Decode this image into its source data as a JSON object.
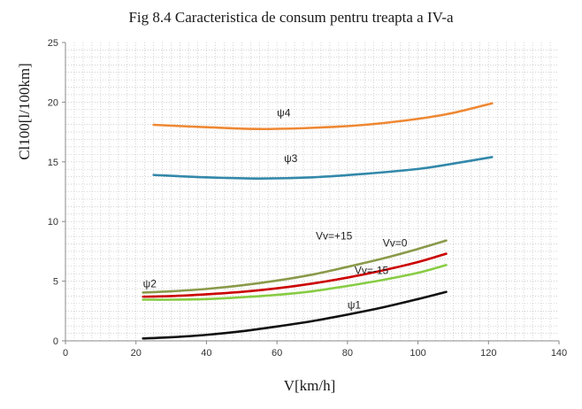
{
  "chart_data": {
    "type": "line",
    "title": "Fig 8.4 Caracteristica de consum pentru treapta a IV-a",
    "xlabel": "V[km/h]",
    "ylabel": "Cl100[l/100km]",
    "xlim": [
      0,
      140
    ],
    "ylim": [
      0,
      25
    ],
    "x_ticks": [
      0,
      20,
      40,
      60,
      80,
      100,
      120,
      140
    ],
    "y_ticks": [
      0,
      5,
      10,
      15,
      20,
      25
    ],
    "grid": "dotted-minor",
    "series": [
      {
        "name": "ψ4",
        "color": "#ee8833",
        "x": [
          25,
          40,
          55,
          70,
          85,
          100,
          110,
          121
        ],
        "y": [
          18.1,
          17.9,
          17.75,
          17.85,
          18.1,
          18.6,
          19.1,
          19.9
        ]
      },
      {
        "name": "ψ3",
        "color": "#3388aa",
        "x": [
          25,
          40,
          55,
          70,
          85,
          100,
          110,
          121
        ],
        "y": [
          13.9,
          13.7,
          13.6,
          13.7,
          14.0,
          14.4,
          14.85,
          15.4
        ]
      },
      {
        "name": "Vv=+15",
        "color": "#8a9a4a",
        "x": [
          22,
          30,
          40,
          50,
          60,
          70,
          80,
          90,
          100,
          108
        ],
        "y": [
          4.05,
          4.15,
          4.35,
          4.65,
          5.05,
          5.55,
          6.2,
          6.9,
          7.7,
          8.4
        ]
      },
      {
        "name": "Vv=0",
        "color": "#cc0000",
        "x": [
          22,
          30,
          40,
          50,
          60,
          70,
          80,
          90,
          100,
          108
        ],
        "y": [
          3.7,
          3.75,
          3.9,
          4.1,
          4.4,
          4.8,
          5.3,
          5.9,
          6.6,
          7.3
        ]
      },
      {
        "name": "Vv=-15",
        "color": "#88cc44",
        "x": [
          22,
          30,
          40,
          50,
          60,
          70,
          80,
          90,
          100,
          108
        ],
        "y": [
          3.45,
          3.45,
          3.5,
          3.65,
          3.85,
          4.15,
          4.6,
          5.1,
          5.7,
          6.35
        ]
      },
      {
        "name": "ψ1",
        "color": "#111111",
        "x": [
          22,
          30,
          40,
          50,
          60,
          70,
          80,
          90,
          100,
          108
        ],
        "y": [
          0.2,
          0.3,
          0.5,
          0.8,
          1.2,
          1.65,
          2.2,
          2.8,
          3.5,
          4.1
        ]
      }
    ],
    "annotations": [
      {
        "text": "ψ4",
        "x": 60,
        "y": 18.8
      },
      {
        "text": "ψ3",
        "x": 62,
        "y": 15.0
      },
      {
        "text": "Vv=+15",
        "x": 71,
        "y": 8.5
      },
      {
        "text": "Vv=0",
        "x": 90,
        "y": 7.9
      },
      {
        "text": "Vv=-15",
        "x": 82,
        "y": 5.6
      },
      {
        "text": "ψ2",
        "x": 22,
        "y": 4.5
      },
      {
        "text": "ψ1",
        "x": 80,
        "y": 2.7
      }
    ]
  }
}
